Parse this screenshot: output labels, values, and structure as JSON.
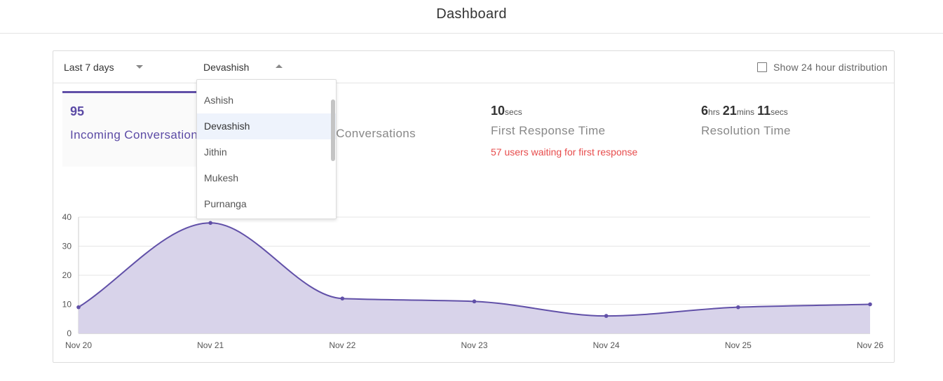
{
  "header": {
    "title": "Dashboard"
  },
  "filters": {
    "range_label": "Last 7 days",
    "agent_label": "Devashish",
    "distribution_label": "Show 24 hour distribution",
    "distribution_checked": false
  },
  "dropdown": {
    "options": [
      "Ashish",
      "Devashish",
      "Jithin",
      "Mukesh",
      "Purnanga"
    ],
    "selected": "Devashish"
  },
  "metrics": {
    "incoming": {
      "value": "95",
      "label": "Incoming Conversations"
    },
    "resolved": {
      "label": "Resolved Conversations"
    },
    "first_response": {
      "value": "10",
      "unit": "secs",
      "label": "First Response Time",
      "note": "57 users waiting for first response"
    },
    "resolution": {
      "hrs": "6",
      "hrs_unit": "hrs",
      "mins": "21",
      "mins_unit": "mins",
      "secs": "11",
      "secs_unit": "secs",
      "label": "Resolution Time"
    }
  },
  "colors": {
    "accent": "#6150a8",
    "fill": "#d8d3ea",
    "warning": "#e74c4c"
  },
  "chart_data": {
    "type": "area",
    "x": [
      "Nov 20",
      "Nov 21",
      "Nov 22",
      "Nov 23",
      "Nov 24",
      "Nov 25",
      "Nov 26"
    ],
    "series": [
      {
        "values": [
          9,
          38,
          12,
          11,
          6,
          9,
          10
        ]
      }
    ],
    "y_ticks": [
      "0",
      "10",
      "20",
      "30",
      "40"
    ],
    "ylim": [
      0,
      40
    ],
    "grid": true
  }
}
